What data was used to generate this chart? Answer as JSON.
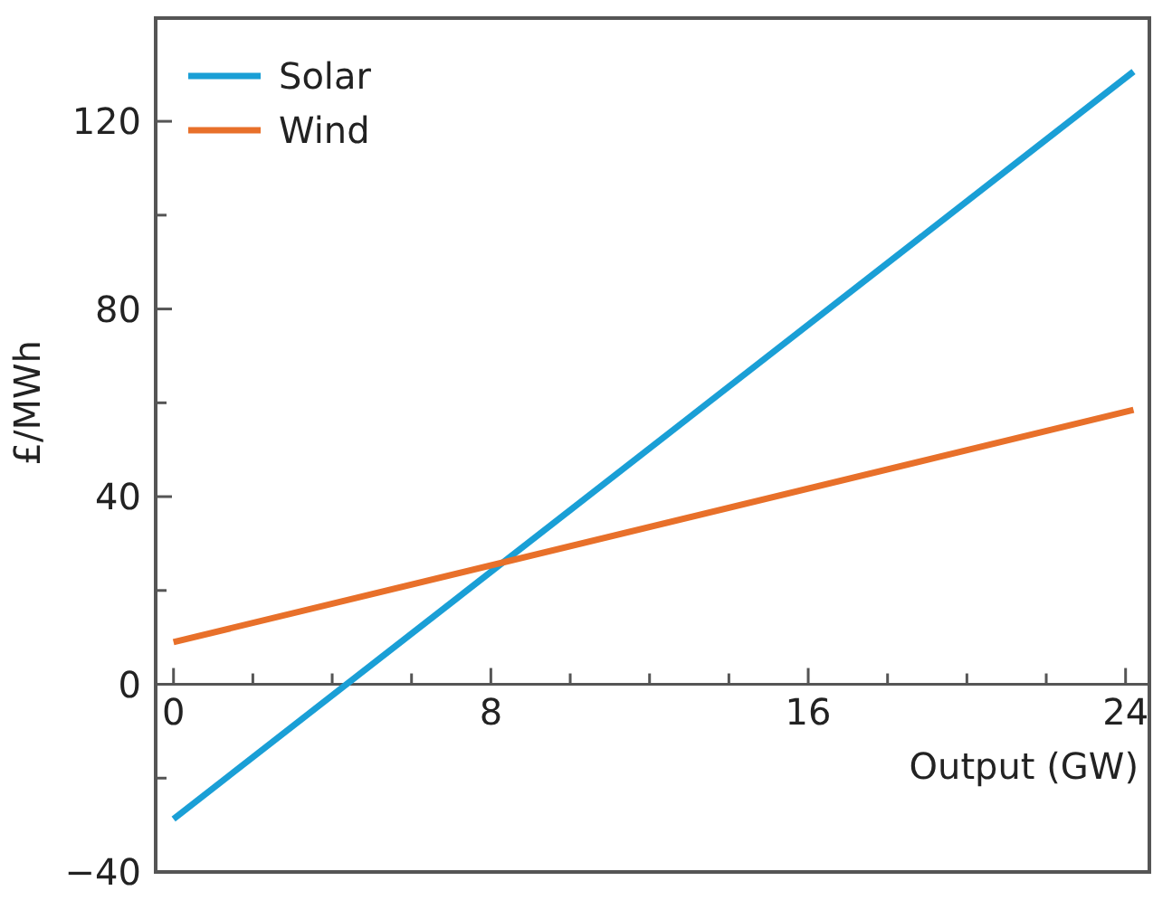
{
  "chart_data": {
    "type": "line",
    "xlabel": "Output (GW)",
    "ylabel": "£/MWh",
    "xlim": [
      -0.45,
      24.6
    ],
    "ylim": [
      -40,
      142
    ],
    "xticks": [
      0,
      {
        "value": 2,
        "label": null
      },
      {
        "value": 4,
        "label": null
      },
      {
        "value": 6,
        "label": null
      },
      8,
      {
        "value": 10,
        "label": null
      },
      {
        "value": 12,
        "label": null
      },
      {
        "value": 14,
        "label": null
      },
      16,
      {
        "value": 18,
        "label": null
      },
      {
        "value": 20,
        "label": null
      },
      {
        "value": 22,
        "label": null
      },
      24
    ],
    "yticks": [
      -40,
      {
        "value": -20,
        "label": null
      },
      0,
      {
        "value": 20,
        "label": null
      },
      40,
      {
        "value": 60,
        "label": null
      },
      80,
      {
        "value": 100,
        "label": null
      },
      120
    ],
    "x": [
      0,
      24.2
    ],
    "series": [
      {
        "name": "Solar",
        "color": "#1a9fd6",
        "values": [
          -28.7,
          130.6
        ]
      },
      {
        "name": "Wind",
        "color": "#e8702a",
        "values": [
          9,
          58.5
        ]
      }
    ],
    "legend": "top left",
    "grid": false,
    "marker": "none",
    "line_style": "solid"
  }
}
